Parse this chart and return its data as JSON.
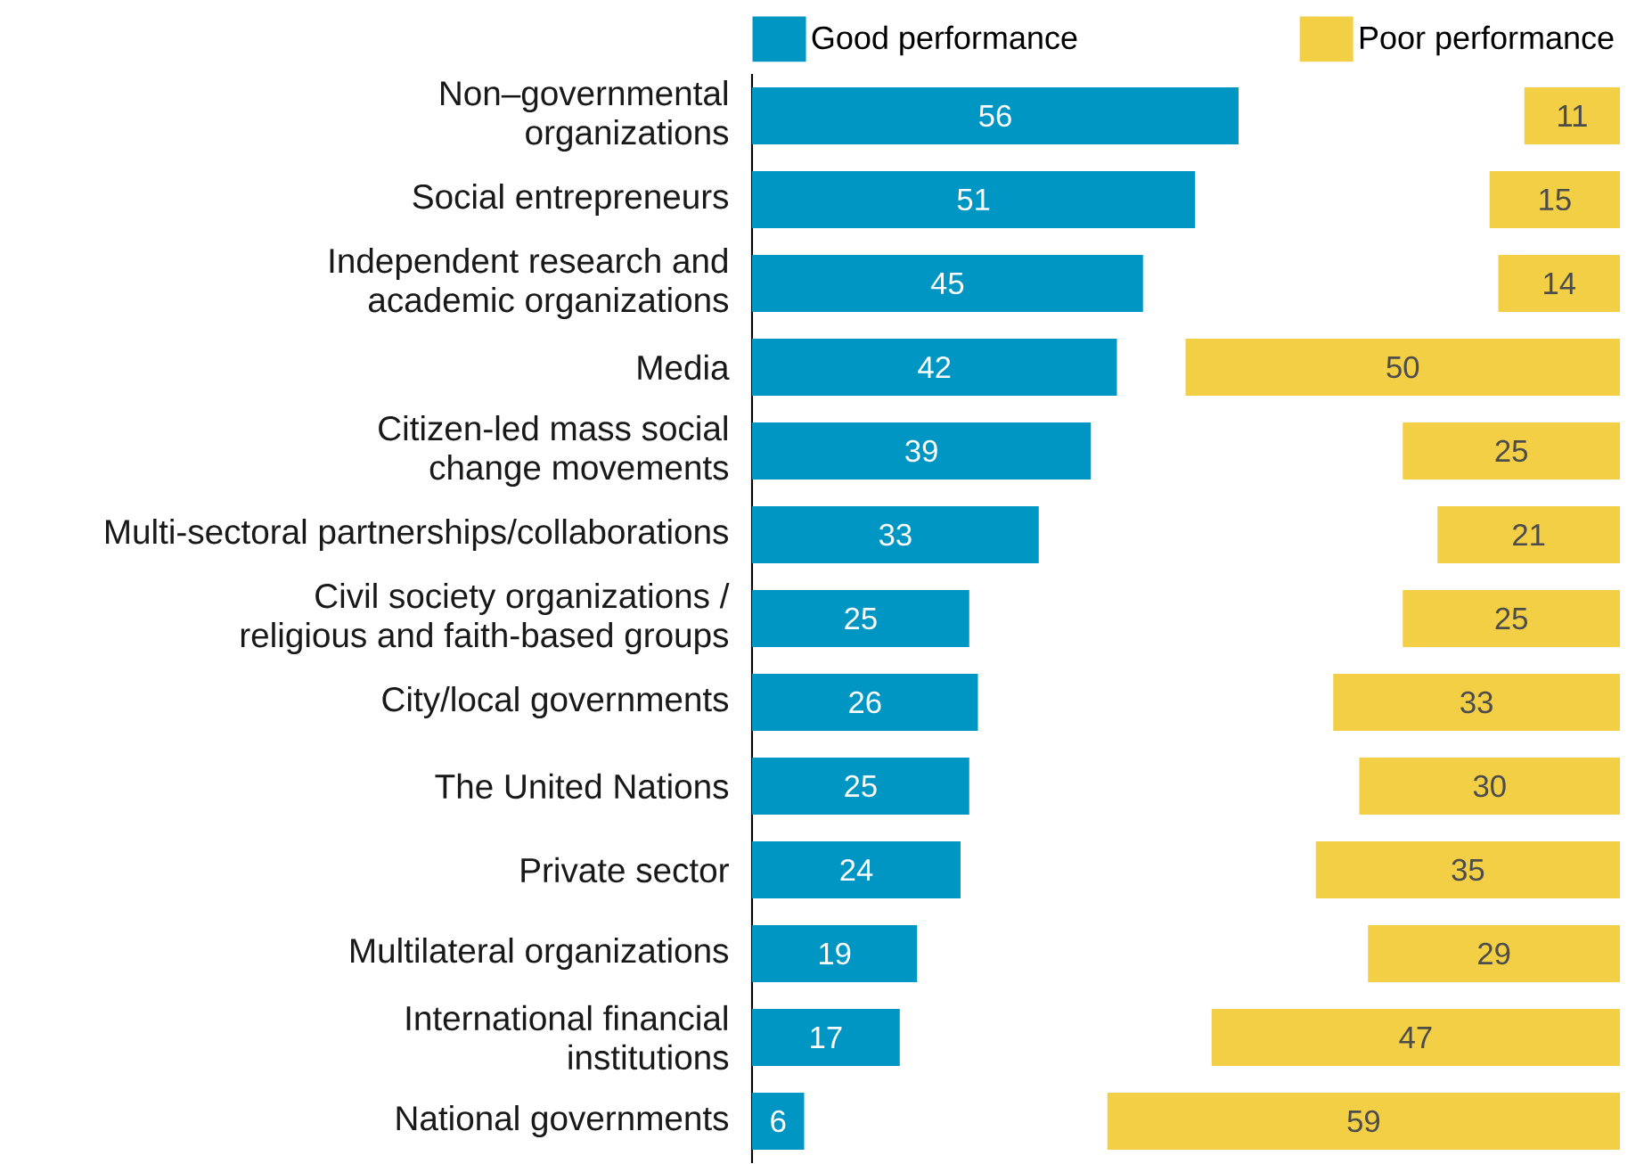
{
  "chart_data": [
    {
      "type": "bar",
      "orientation": "horizontal",
      "categories": [
        "Non–governmental organizations",
        "Social entrepreneurs",
        "Independent research and academic organizations",
        "Media",
        "Citizen-led mass social change movements",
        "Multi-sectoral partnerships/collaborations",
        "Civil society organizations / religious and faith-based groups",
        "City/local governments",
        "The United Nations",
        "Private sector",
        "Multilateral organizations",
        "International financial institutions",
        "National governments"
      ],
      "series": [
        {
          "name": "Good performance",
          "color": "#0096c3",
          "values": [
            56,
            51,
            45,
            42,
            39,
            33,
            25,
            26,
            25,
            24,
            19,
            17,
            6
          ]
        }
      ],
      "data_labels": true,
      "legend": "top left",
      "tick_labels": "y"
    },
    {
      "type": "bar",
      "orientation": "horizontal",
      "categories": [
        null,
        null,
        null,
        null,
        null,
        null,
        null,
        null,
        null,
        null,
        null,
        null,
        null
      ],
      "series": [
        {
          "name": "Poor performance",
          "color": "#f2cf45",
          "values": [
            11,
            15,
            14,
            50,
            25,
            21,
            25,
            33,
            30,
            35,
            29,
            47,
            59
          ]
        }
      ],
      "xlim": [
        59,
        0
      ],
      "data_labels": true,
      "legend": "top right"
    }
  ]
}
